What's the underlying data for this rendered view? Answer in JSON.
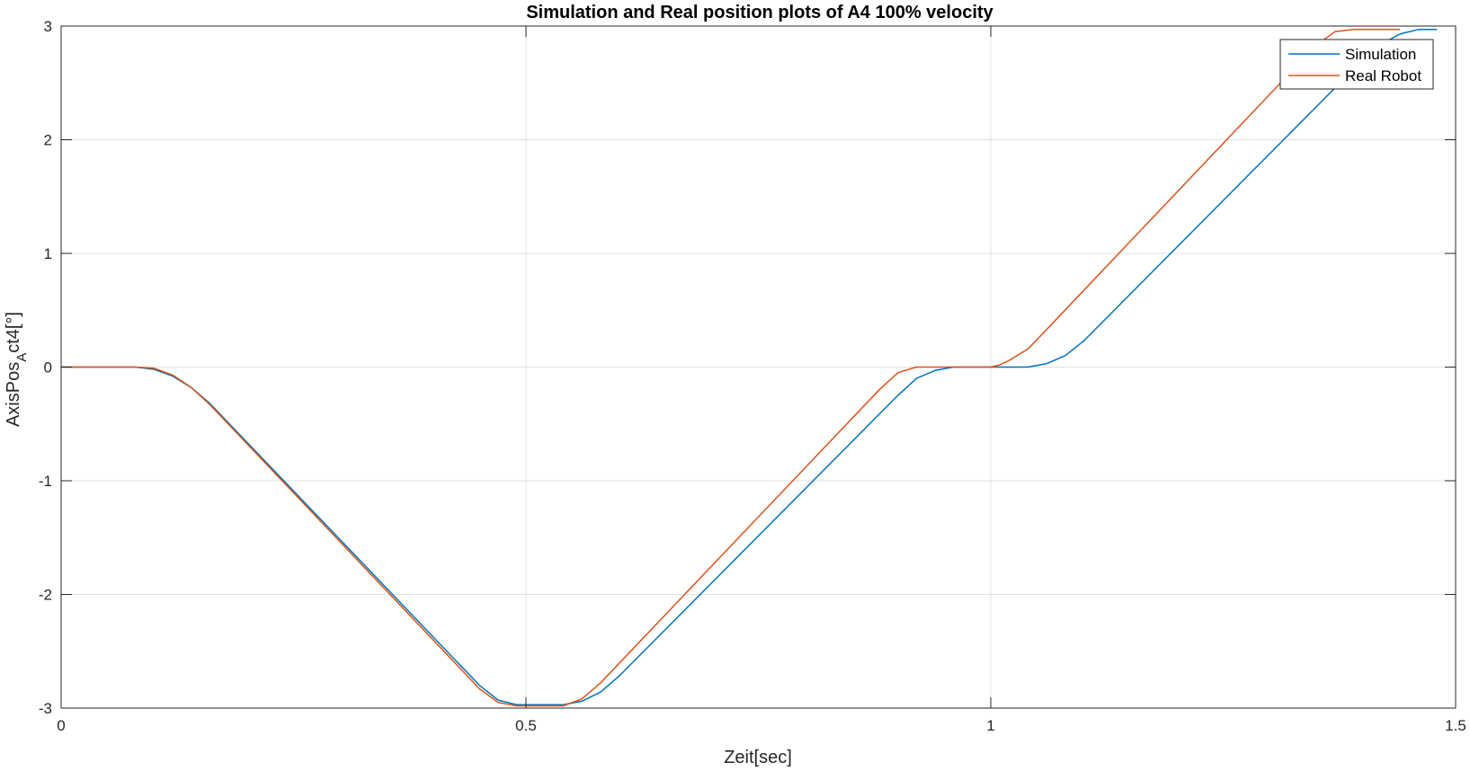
{
  "chart_data": {
    "type": "line",
    "title": "Simulation and Real position plots of A4 100% velocity",
    "xlabel": "Zeit[sec]",
    "ylabel_main": "AxisPos",
    "ylabel_sub": "A",
    "ylabel_tail": "ct4[°]",
    "xlim": [
      0,
      1.5
    ],
    "ylim": [
      -3,
      3
    ],
    "xticks": [
      0,
      0.5,
      1,
      1.5
    ],
    "xtick_labels": [
      "0",
      "0.5",
      "1",
      "1.5"
    ],
    "yticks": [
      -3,
      -2,
      -1,
      0,
      1,
      2,
      3
    ],
    "ytick_labels": [
      "-3",
      "-2",
      "-1",
      "0",
      "1",
      "2",
      "3"
    ],
    "grid": true,
    "legend_position": "top-right",
    "series": [
      {
        "name": "Simulation",
        "color": "#0072BD",
        "x": [
          0,
          0.08,
          0.1,
          0.12,
          0.14,
          0.16,
          0.45,
          0.47,
          0.49,
          0.52,
          0.54,
          0.56,
          0.58,
          0.6,
          0.9,
          0.92,
          0.94,
          0.96,
          1.0,
          1.04,
          1.06,
          1.08,
          1.1,
          1.4,
          1.42,
          1.44,
          1.46,
          1.48
        ],
        "y": [
          0,
          0,
          -0.02,
          -0.08,
          -0.18,
          -0.32,
          -2.8,
          -2.93,
          -2.97,
          -2.97,
          -2.97,
          -2.94,
          -2.86,
          -2.72,
          -0.25,
          -0.1,
          -0.03,
          0,
          0,
          0,
          0.03,
          0.1,
          0.23,
          2.7,
          2.84,
          2.93,
          2.97,
          2.97
        ]
      },
      {
        "name": "Real Robot",
        "color": "#D95319",
        "x": [
          0,
          0.08,
          0.1,
          0.12,
          0.14,
          0.16,
          0.45,
          0.47,
          0.49,
          0.5,
          0.54,
          0.56,
          0.58,
          0.88,
          0.9,
          0.92,
          0.95,
          1.0,
          1.01,
          1.02,
          1.04,
          1.06,
          1.35,
          1.37,
          1.39,
          1.42,
          1.44
        ],
        "y": [
          0,
          0,
          -0.01,
          -0.07,
          -0.18,
          -0.33,
          -2.83,
          -2.95,
          -2.98,
          -2.98,
          -2.98,
          -2.92,
          -2.78,
          -0.2,
          -0.05,
          0,
          0,
          0,
          0.02,
          0.06,
          0.16,
          0.33,
          2.83,
          2.95,
          2.97,
          2.97,
          2.97
        ]
      }
    ]
  }
}
